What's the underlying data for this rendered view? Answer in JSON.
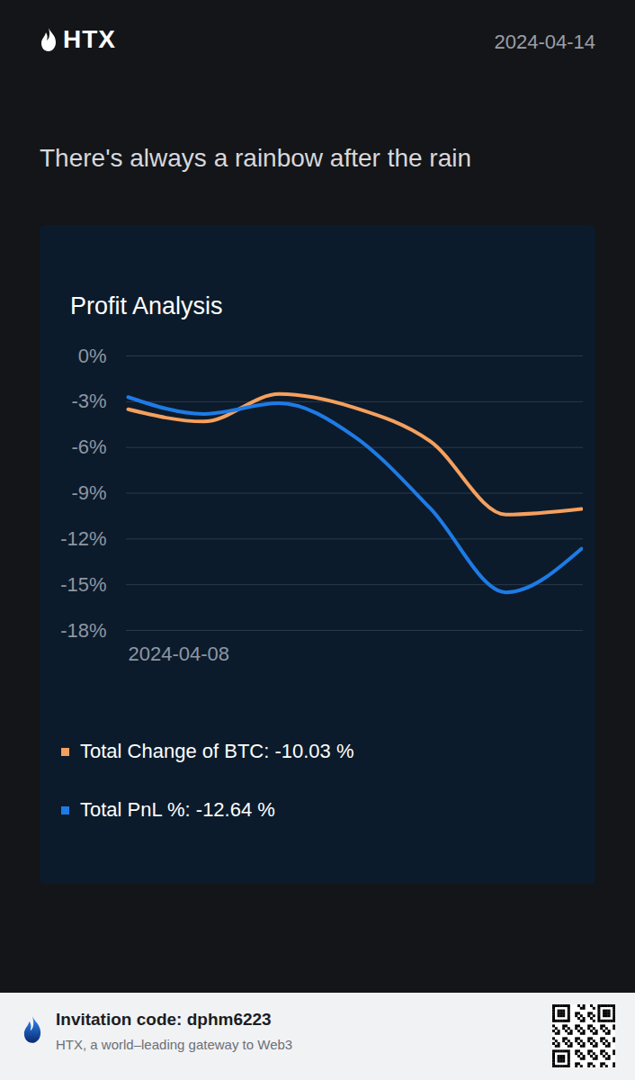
{
  "header": {
    "logo": "HTX",
    "date": "2024-04-14",
    "tagline": "There's always a rainbow after the rain"
  },
  "chart_data": {
    "type": "line",
    "title": "Profit Analysis",
    "categories": [
      "2024-04-08",
      null,
      null,
      null,
      null,
      null,
      null
    ],
    "series": [
      {
        "name": "Total Change of BTC: -10.03 %",
        "color": "#f5a05e",
        "values": [
          -3.5,
          -4.3,
          -2.5,
          -3.4,
          -5.6,
          -10.4,
          -10.03
        ]
      },
      {
        "name": "Total PnL %: -12.64 %",
        "color": "#1e7be6",
        "values": [
          -2.7,
          -3.8,
          -3.1,
          -5.3,
          -10.0,
          -15.5,
          -12.64
        ]
      }
    ],
    "ylim": [
      -18,
      0
    ],
    "yticks": [
      {
        "value": 0,
        "label": "0%"
      },
      {
        "value": -3,
        "label": "-3%"
      },
      {
        "value": -6,
        "label": "-6%"
      },
      {
        "value": -9,
        "label": "-9%"
      },
      {
        "value": -12,
        "label": "-12%"
      },
      {
        "value": -15,
        "label": "-15%"
      },
      {
        "value": -18,
        "label": "-18%"
      }
    ],
    "grid": true,
    "legend": "bottom"
  },
  "footer": {
    "invitation": "Invitation code: dphm6223",
    "slogan": "HTX, a world–leading gateway to Web3"
  }
}
